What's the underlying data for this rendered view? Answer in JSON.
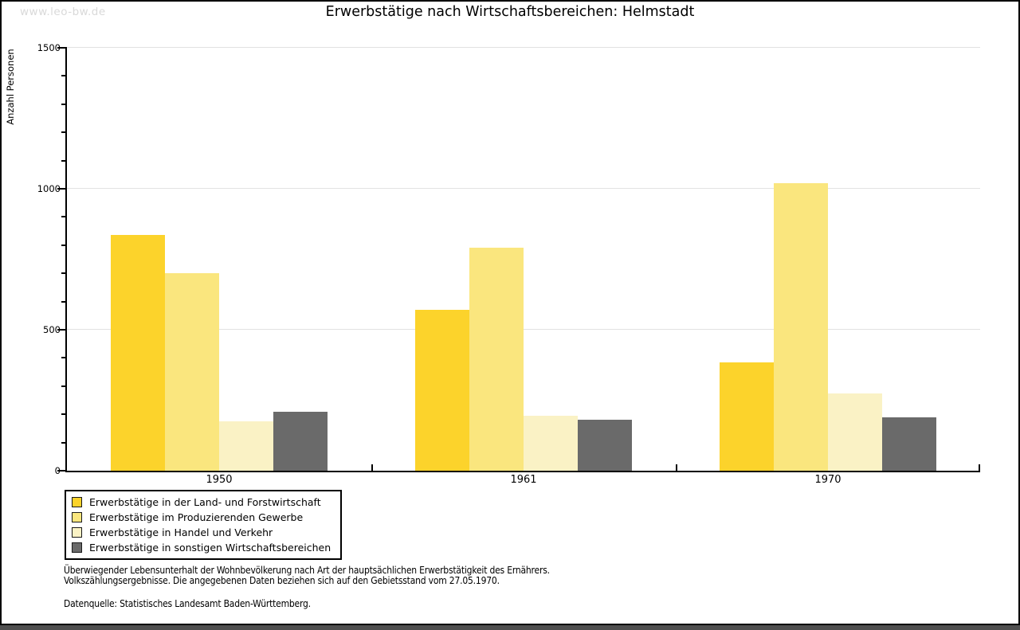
{
  "watermark": "www.leo-bw.de",
  "chart_data": {
    "type": "bar",
    "title": "Erwerbstätige nach Wirtschaftsbereichen: Helmstadt",
    "xlabel": "",
    "ylabel": "Anzahl Personen",
    "categories": [
      "1950",
      "1961",
      "1970"
    ],
    "series": [
      {
        "name": "Erwerbstätige in der Land- und Forstwirtschaft",
        "color": "#fcd32b",
        "values": [
          835,
          570,
          385
        ]
      },
      {
        "name": "Erwerbstätige im Produzierenden Gewerbe",
        "color": "#fae67e",
        "values": [
          700,
          790,
          1020
        ]
      },
      {
        "name": "Erwerbstätige in Handel und Verkehr",
        "color": "#faf2c5",
        "values": [
          175,
          195,
          275
        ]
      },
      {
        "name": "Erwerbstätige in sonstigen Wirtschaftsbereichen",
        "color": "#6a6a6a",
        "values": [
          210,
          180,
          190
        ]
      }
    ],
    "ylim": [
      0,
      1500
    ],
    "yticks": [
      0,
      500,
      1000,
      1500
    ],
    "minor_tick_step": 100,
    "grid": true,
    "legend_position": "bottom-left"
  },
  "footnote": {
    "line1": "Überwiegender Lebensunterhalt der Wohnbevölkerung nach Art der hauptsächlichen Erwerbstätigkeit des Ernährers.",
    "line2": "Volkszählungsergebnisse. Die angegebenen Daten beziehen sich auf den Gebietsstand vom 27.05.1970.",
    "source": "Datenquelle: Statistisches Landesamt Baden-Württemberg."
  },
  "colors": {
    "axis": "#000000",
    "gridline": "#e2e2e2",
    "watermark": "#d9d9d9",
    "window_edge_strip": "#4f4f4f",
    "background": "#ffffff"
  }
}
